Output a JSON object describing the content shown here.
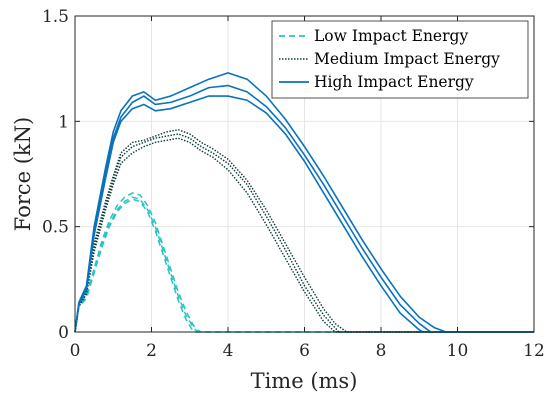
{
  "chart_data": {
    "type": "line",
    "xlabel": "Time (ms)",
    "ylabel": "Force (kN)",
    "xlim": [
      0,
      12
    ],
    "ylim": [
      0,
      1.5
    ],
    "xticks": [
      0,
      2,
      4,
      6,
      8,
      10,
      12
    ],
    "yticks": [
      0,
      0.5,
      1,
      1.5
    ],
    "xtick_labels": [
      "0",
      "2",
      "4",
      "6",
      "8",
      "10",
      "12"
    ],
    "ytick_labels": [
      "0",
      "0.5",
      "1",
      "1.5"
    ],
    "grid": true,
    "legend_position": "top-right",
    "series": [
      {
        "name": "Low Impact Energy",
        "color": "#27c4c4",
        "style": "dashed",
        "runs": [
          {
            "x": [
              0,
              0.1,
              0.3,
              0.5,
              0.7,
              0.9,
              1.1,
              1.3,
              1.5,
              1.7,
              1.9,
              2.1,
              2.3,
              2.5,
              2.7,
              2.9,
              3.1,
              3.2,
              3.3,
              12
            ],
            "y": [
              0,
              0.13,
              0.18,
              0.3,
              0.43,
              0.53,
              0.6,
              0.64,
              0.66,
              0.65,
              0.6,
              0.52,
              0.41,
              0.3,
              0.19,
              0.1,
              0.03,
              0.01,
              0,
              0
            ]
          },
          {
            "x": [
              0,
              0.1,
              0.3,
              0.5,
              0.7,
              0.9,
              1.1,
              1.3,
              1.5,
              1.7,
              1.9,
              2.1,
              2.3,
              2.5,
              2.7,
              2.9,
              3.1,
              3.2,
              12
            ],
            "y": [
              0,
              0.12,
              0.17,
              0.29,
              0.41,
              0.51,
              0.58,
              0.62,
              0.64,
              0.63,
              0.58,
              0.5,
              0.39,
              0.28,
              0.17,
              0.08,
              0.02,
              0,
              0
            ]
          },
          {
            "x": [
              0,
              0.1,
              0.3,
              0.5,
              0.7,
              0.9,
              1.1,
              1.3,
              1.5,
              1.7,
              1.9,
              2.1,
              2.3,
              2.5,
              2.7,
              2.9,
              3.1,
              12
            ],
            "y": [
              0,
              0.12,
              0.16,
              0.28,
              0.4,
              0.5,
              0.57,
              0.61,
              0.63,
              0.62,
              0.57,
              0.48,
              0.37,
              0.26,
              0.15,
              0.06,
              0,
              0
            ]
          }
        ]
      },
      {
        "name": "Medium Impact Energy",
        "color": "#0d3b3b",
        "style": "dotted",
        "runs": [
          {
            "x": [
              0,
              0.1,
              0.3,
              0.5,
              0.8,
              1.0,
              1.2,
              1.5,
              1.8,
              2.1,
              2.4,
              2.7,
              3.0,
              3.3,
              3.6,
              4.0,
              4.5,
              5.0,
              5.5,
              6.0,
              6.5,
              6.8,
              7.1,
              12
            ],
            "y": [
              0,
              0.13,
              0.2,
              0.42,
              0.62,
              0.74,
              0.85,
              0.9,
              0.91,
              0.93,
              0.95,
              0.96,
              0.94,
              0.9,
              0.87,
              0.82,
              0.72,
              0.58,
              0.42,
              0.26,
              0.11,
              0.04,
              0,
              0
            ]
          },
          {
            "x": [
              0,
              0.1,
              0.3,
              0.5,
              0.8,
              1.0,
              1.2,
              1.5,
              1.8,
              2.1,
              2.4,
              2.7,
              3.0,
              3.3,
              3.6,
              4.0,
              4.5,
              5.0,
              5.5,
              6.0,
              6.5,
              6.9,
              12
            ],
            "y": [
              0,
              0.12,
              0.19,
              0.4,
              0.6,
              0.72,
              0.83,
              0.88,
              0.9,
              0.92,
              0.93,
              0.94,
              0.92,
              0.88,
              0.85,
              0.8,
              0.7,
              0.55,
              0.39,
              0.22,
              0.08,
              0,
              0
            ]
          },
          {
            "x": [
              0,
              0.1,
              0.3,
              0.5,
              0.8,
              1.0,
              1.2,
              1.5,
              1.8,
              2.1,
              2.4,
              2.7,
              3.0,
              3.3,
              3.6,
              4.0,
              4.5,
              5.0,
              5.5,
              6.0,
              6.5,
              6.8,
              12
            ],
            "y": [
              0,
              0.12,
              0.18,
              0.38,
              0.58,
              0.7,
              0.8,
              0.85,
              0.88,
              0.9,
              0.91,
              0.92,
              0.9,
              0.86,
              0.83,
              0.77,
              0.66,
              0.51,
              0.35,
              0.19,
              0.05,
              0,
              0
            ]
          }
        ]
      },
      {
        "name": "High Impact Energy",
        "color": "#0a72bd",
        "style": "solid",
        "runs": [
          {
            "x": [
              0,
              0.1,
              0.3,
              0.5,
              0.8,
              1.0,
              1.2,
              1.5,
              1.8,
              2.1,
              2.5,
              3.0,
              3.5,
              4.0,
              4.5,
              5.0,
              5.5,
              6.0,
              6.5,
              7.0,
              7.5,
              8.0,
              8.5,
              9.0,
              9.4,
              9.7,
              12
            ],
            "y": [
              0,
              0.14,
              0.22,
              0.5,
              0.78,
              0.95,
              1.05,
              1.12,
              1.14,
              1.1,
              1.12,
              1.16,
              1.2,
              1.23,
              1.2,
              1.12,
              1.01,
              0.88,
              0.74,
              0.59,
              0.44,
              0.3,
              0.17,
              0.07,
              0.02,
              0,
              0
            ]
          },
          {
            "x": [
              0,
              0.1,
              0.3,
              0.5,
              0.8,
              1.0,
              1.2,
              1.5,
              1.8,
              2.1,
              2.5,
              3.0,
              3.5,
              4.0,
              4.5,
              5.0,
              5.5,
              6.0,
              6.5,
              7.0,
              7.5,
              8.0,
              8.5,
              9.0,
              9.3,
              12
            ],
            "y": [
              0,
              0.13,
              0.21,
              0.48,
              0.76,
              0.92,
              1.02,
              1.09,
              1.12,
              1.08,
              1.09,
              1.12,
              1.16,
              1.17,
              1.14,
              1.07,
              0.97,
              0.84,
              0.7,
              0.55,
              0.4,
              0.26,
              0.13,
              0.04,
              0,
              0
            ]
          },
          {
            "x": [
              0,
              0.1,
              0.3,
              0.5,
              0.8,
              1.0,
              1.2,
              1.5,
              1.8,
              2.1,
              2.5,
              3.0,
              3.5,
              4.0,
              4.5,
              5.0,
              5.5,
              6.0,
              6.5,
              7.0,
              7.5,
              8.0,
              8.5,
              9.0,
              9.1,
              12
            ],
            "y": [
              0,
              0.13,
              0.2,
              0.46,
              0.73,
              0.9,
              1.0,
              1.06,
              1.08,
              1.05,
              1.06,
              1.09,
              1.12,
              1.12,
              1.1,
              1.04,
              0.94,
              0.81,
              0.66,
              0.51,
              0.36,
              0.22,
              0.09,
              0.01,
              0,
              0
            ]
          }
        ]
      }
    ]
  }
}
